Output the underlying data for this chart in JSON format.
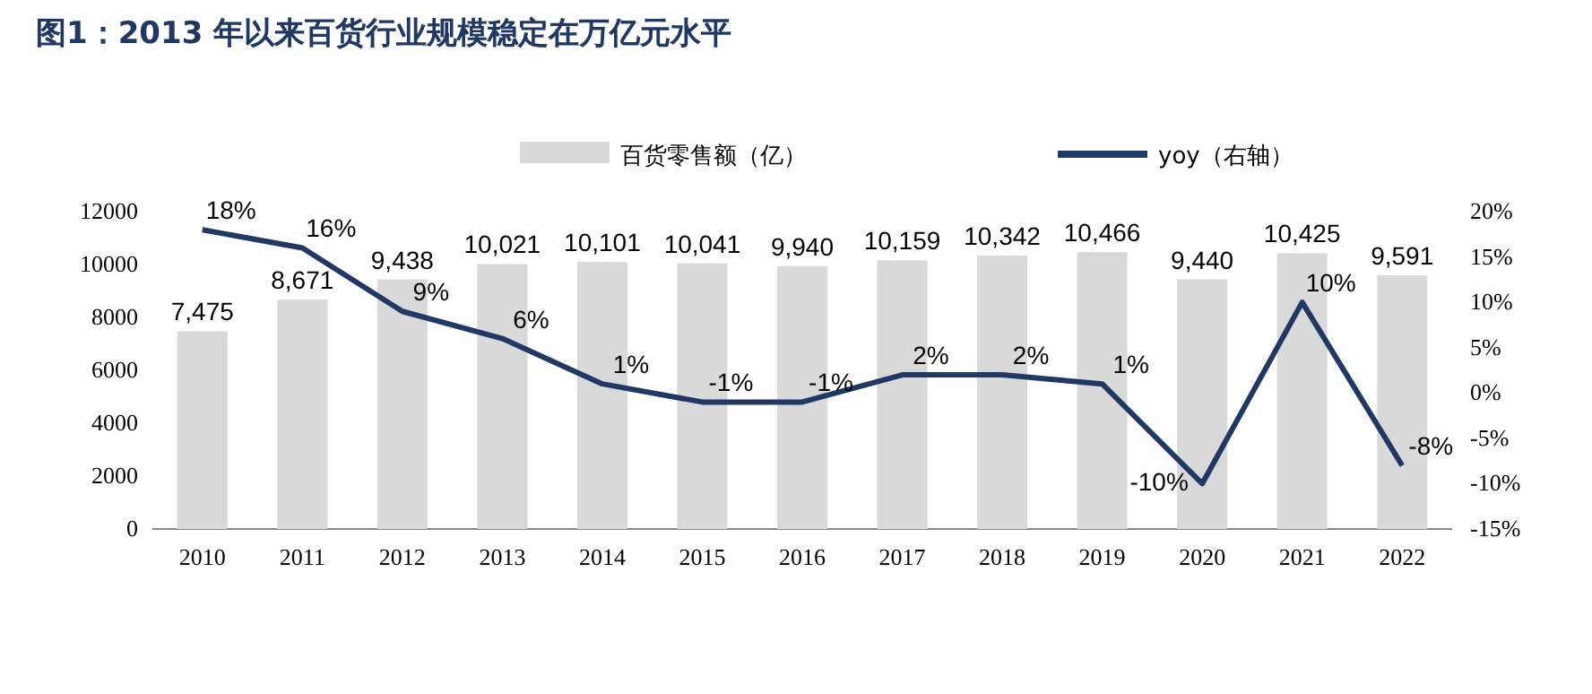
{
  "chart_data": {
    "type": "bar",
    "title": "图1：2013 年以来百货行业规模稳定在万亿元水平",
    "categories": [
      "2010",
      "2011",
      "2012",
      "2013",
      "2014",
      "2015",
      "2016",
      "2017",
      "2018",
      "2019",
      "2020",
      "2021",
      "2022"
    ],
    "series": [
      {
        "name": "百货零售额（亿）",
        "type": "bar",
        "color": "#d9d9d9",
        "values": [
          7475,
          8671,
          9438,
          10021,
          10101,
          10041,
          9940,
          10159,
          10342,
          10466,
          9440,
          10425,
          9591
        ],
        "value_labels": [
          "7,475",
          "8,671",
          "9,438",
          "10,021",
          "10,101",
          "10,041",
          "9,940",
          "10,159",
          "10,342",
          "10,466",
          "9,440",
          "10,425",
          "9,591"
        ]
      },
      {
        "name": "yoy（右轴）",
        "type": "line",
        "axis": "y2",
        "color": "#203864",
        "values": [
          18,
          16,
          9,
          6,
          1,
          -1,
          -1,
          2,
          2,
          1,
          -10,
          10,
          -8
        ],
        "value_labels": [
          "18%",
          "16%",
          "9%",
          "6%",
          "1%",
          "-1%",
          "-1%",
          "2%",
          "2%",
          "1%",
          "-10%",
          "10%",
          "-8%"
        ]
      }
    ],
    "ylim": [
      0,
      12000
    ],
    "yticks": [
      0,
      2000,
      4000,
      6000,
      8000,
      10000,
      12000
    ],
    "y2lim": [
      -15,
      20
    ],
    "y2ticks": [
      {
        "value": -15,
        "label": "-15%"
      },
      {
        "value": -10,
        "label": "-10%"
      },
      {
        "value": -5,
        "label": "-5%"
      },
      {
        "value": 0,
        "label": "0%"
      },
      {
        "value": 5,
        "label": "5%"
      },
      {
        "value": 10,
        "label": "10%"
      },
      {
        "value": 15,
        "label": "15%"
      },
      {
        "value": 20,
        "label": "20%"
      }
    ],
    "grid": false,
    "legend": "top"
  }
}
